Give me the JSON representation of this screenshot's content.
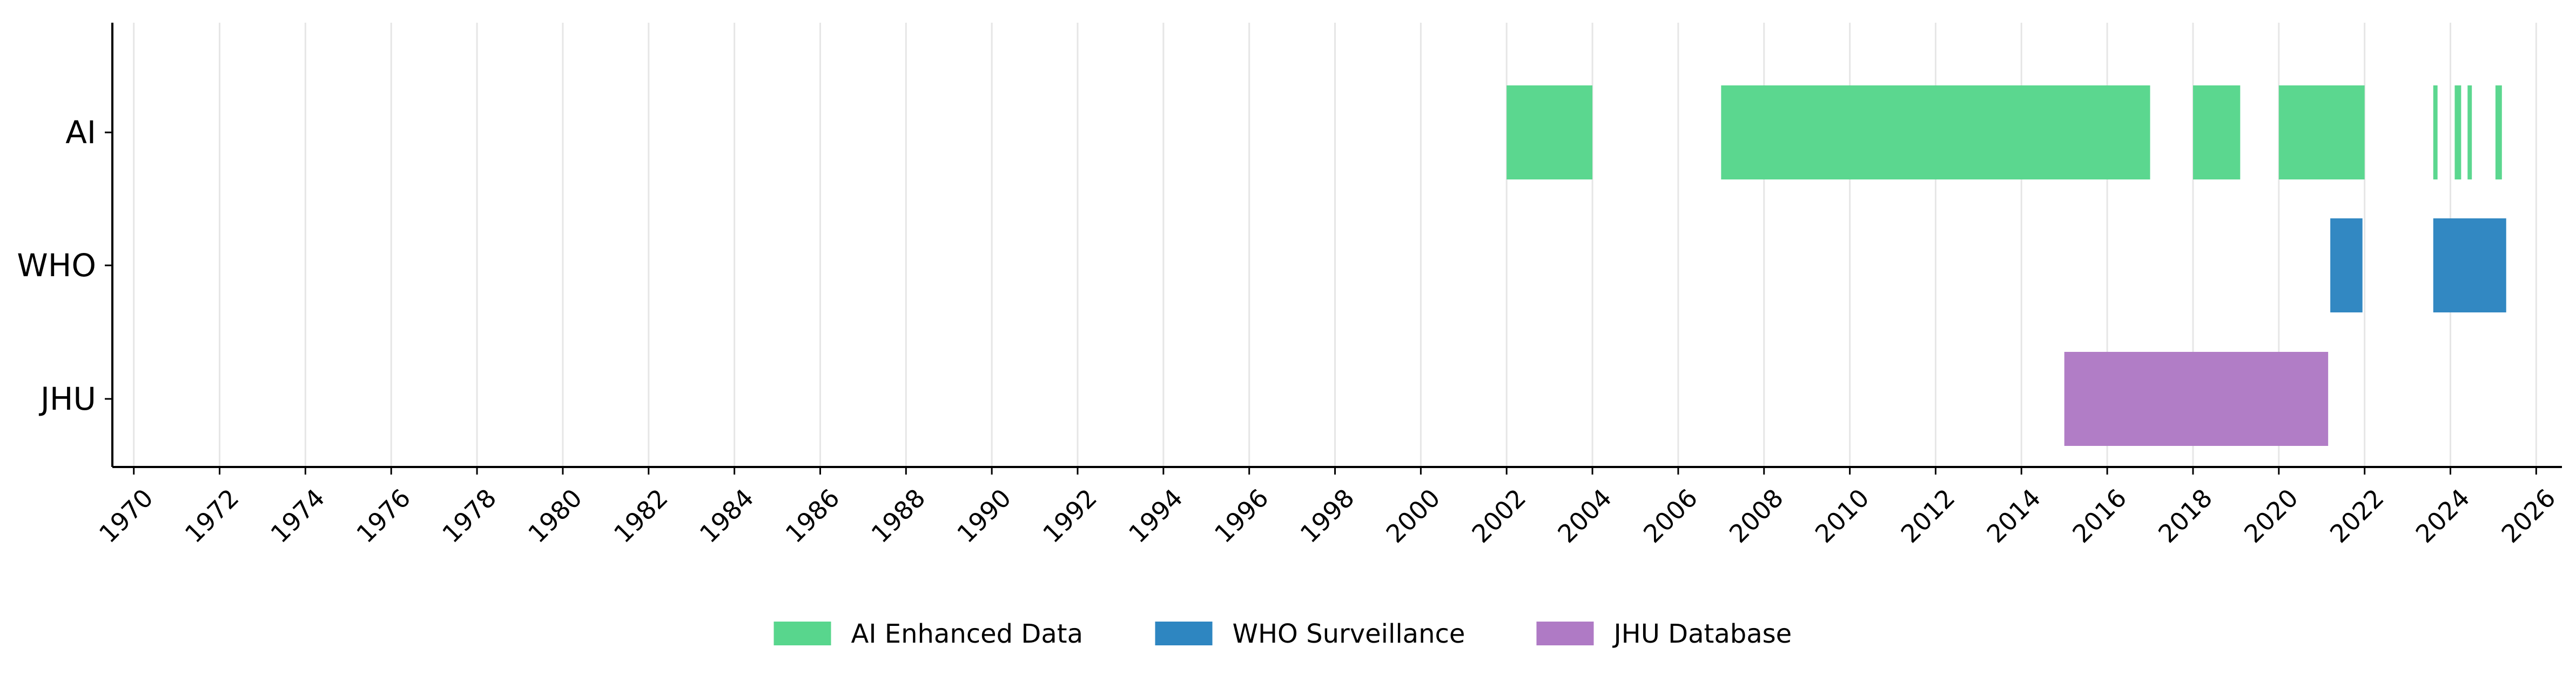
{
  "chart_data": {
    "type": "timeline",
    "title": "",
    "xlabel": "",
    "ylabel": "",
    "xlim": [
      1969.5,
      2026.6
    ],
    "x_ticks": [
      1970,
      1972,
      1974,
      1976,
      1978,
      1980,
      1982,
      1984,
      1986,
      1988,
      1990,
      1992,
      1994,
      1996,
      1998,
      2000,
      2002,
      2004,
      2006,
      2008,
      2010,
      2012,
      2014,
      2016,
      2018,
      2020,
      2022,
      2024,
      2026
    ],
    "x_tick_labels": [
      "1970",
      "1972",
      "1974",
      "1976",
      "1978",
      "1980",
      "1982",
      "1984",
      "1986",
      "1988",
      "1990",
      "1992",
      "1994",
      "1996",
      "1998",
      "2000",
      "2002",
      "2004",
      "2006",
      "2008",
      "2010",
      "2012",
      "2014",
      "2016",
      "2018",
      "2020",
      "2022",
      "2024",
      "2026"
    ],
    "grid": "vertical",
    "legend_position": "bottom-center",
    "categories": [
      "AI",
      "WHO",
      "JHU"
    ],
    "series": [
      {
        "name": "AI Enhanced Data",
        "row": "AI",
        "color": "#58d68d",
        "intervals": [
          [
            2002.0,
            2004.0
          ],
          [
            2007.0,
            2017.0
          ],
          [
            2018.0,
            2019.1
          ],
          [
            2020.0,
            2022.0
          ],
          [
            2023.6,
            2023.7
          ],
          [
            2024.1,
            2024.25
          ],
          [
            2024.4,
            2024.5
          ],
          [
            2025.05,
            2025.2
          ]
        ]
      },
      {
        "name": "WHO Surveillance",
        "row": "WHO",
        "color": "#2e86c1",
        "intervals": [
          [
            2021.2,
            2021.95
          ],
          [
            2023.6,
            2025.3
          ]
        ]
      },
      {
        "name": "JHU Database",
        "row": "JHU",
        "color": "#af7ac5",
        "intervals": [
          [
            2015.0,
            2021.15
          ]
        ]
      }
    ]
  }
}
